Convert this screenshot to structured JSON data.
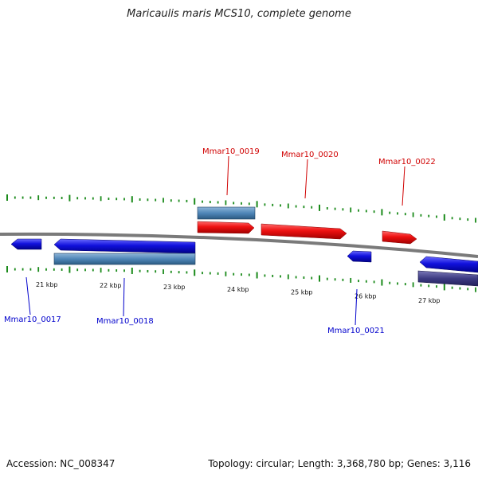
{
  "title": "Maricaulis maris MCS10, complete genome",
  "footer": {
    "accession": "Accession: NC_008347",
    "summary": "Topology: circular; Length: 3,368,780 bp; Genes: 3,116"
  },
  "colors": {
    "forward_gene": "#ee1111",
    "reverse_gene": "#1111dd",
    "forward_label": "#d00000",
    "reverse_label": "#0000cc",
    "feature_bar": "#4f86b8",
    "feature_bar_dark": "#3d3b82",
    "ticks": "#1a8a1a",
    "backbone": "#8a8a8a"
  },
  "tick_labels": [
    "21 kbp",
    "22 kbp",
    "23 kbp",
    "24 kbp",
    "25 kbp",
    "26 kbp",
    "27 kbp"
  ],
  "genes_forward": [
    {
      "label": "Mmar10_0019"
    },
    {
      "label": "Mmar10_0020"
    },
    {
      "label": "Mmar10_0022"
    }
  ],
  "genes_reverse": [
    {
      "label": "Mmar10_0017"
    },
    {
      "label": "Mmar10_0018"
    },
    {
      "label": "Mmar10_0021"
    }
  ]
}
